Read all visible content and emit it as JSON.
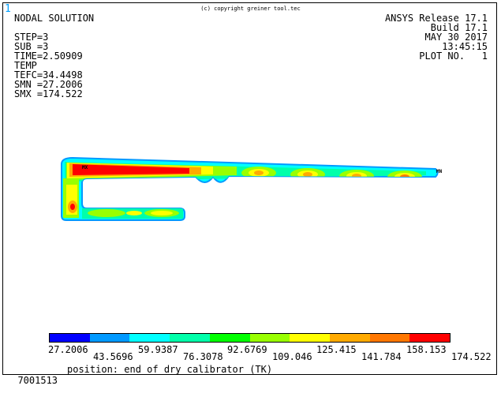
{
  "window_number": "1",
  "copyright": "(c) copyright greiner tool.tec",
  "left_info": [
    "NODAL SOLUTION",
    "",
    "STEP=3",
    "SUB =3",
    "TIME=2.50909",
    "TEMP",
    "TEFC=34.4498",
    "SMN =27.2006",
    "SMX =174.522"
  ],
  "right_info": [
    "ANSYS Release 17.1",
    "Build 17.1",
    "MAY 30 2017",
    "13:45:15",
    "PLOT NO.   1"
  ],
  "markers": {
    "mx": "MX",
    "mn": "MN"
  },
  "legend": {
    "colors": [
      "#0000ff",
      "#0099ff",
      "#00ffff",
      "#00ffaa",
      "#00ff00",
      "#99ff00",
      "#ffff00",
      "#ffaa00",
      "#ff7700",
      "#ff0000"
    ],
    "labels_bottom": [
      "27.2006",
      "59.9387",
      "92.6769",
      "125.415",
      "158.153"
    ],
    "labels_top": [
      "43.5696",
      "76.3078",
      "109.046",
      "141.784",
      "174.522"
    ]
  },
  "footer": {
    "id": "7001513",
    "position": "position: end of dry calibrator (TK)"
  }
}
